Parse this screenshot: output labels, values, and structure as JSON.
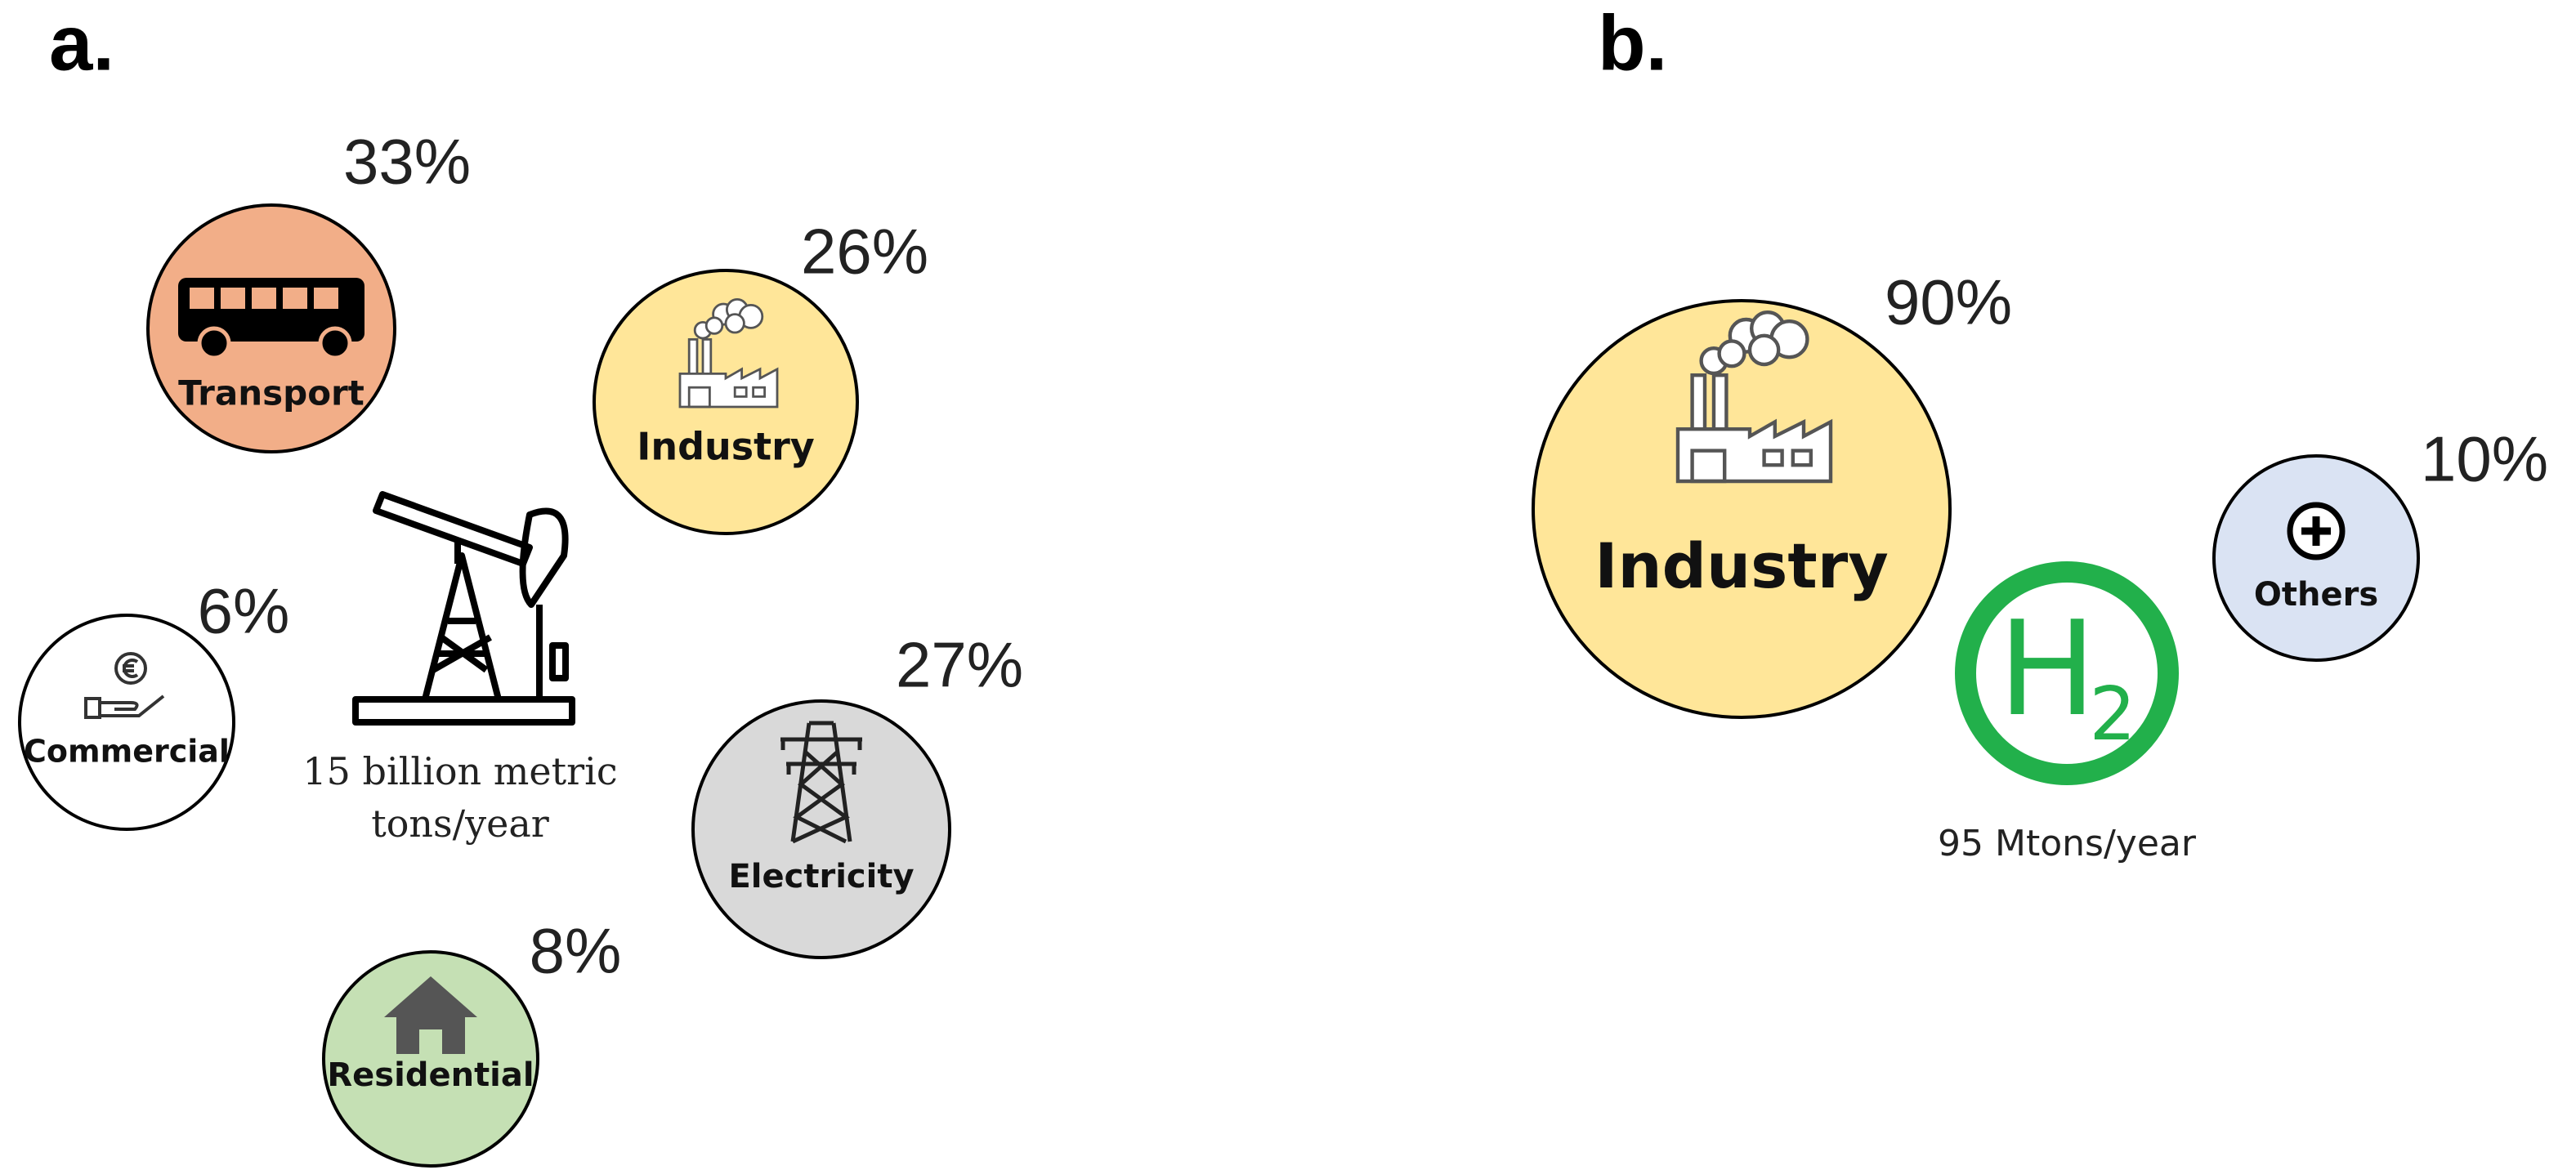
{
  "panels": [
    {
      "label": "a.",
      "center_text": [
        "15 billion metric",
        "tons/year"
      ],
      "sectors": [
        {
          "name": "Transport",
          "share": "33%"
        },
        {
          "name": "Industry",
          "share": "26%"
        },
        {
          "name": "Commercial",
          "share": "6%"
        },
        {
          "name": "Electricity",
          "share": "27%"
        },
        {
          "name": "Residential",
          "share": "8%"
        }
      ]
    },
    {
      "label": "b.",
      "symbol": "H",
      "subscript": "2",
      "center_text": [
        "95 Mtons/year"
      ],
      "sectors": [
        {
          "name": "Industry",
          "share": "90%"
        },
        {
          "name": "Others",
          "share": "10%"
        }
      ]
    }
  ]
}
